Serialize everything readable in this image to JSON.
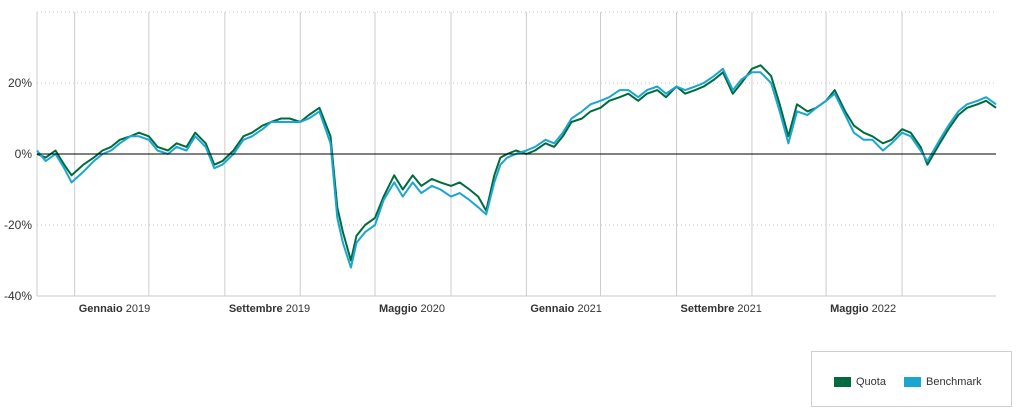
{
  "chart_data": {
    "type": "line",
    "title": "",
    "xlabel": "",
    "ylabel": "",
    "ylim": [
      -40,
      40
    ],
    "yticks": [
      {
        "value": 20,
        "label": "20%"
      },
      {
        "value": 0,
        "label": "0%"
      },
      {
        "value": -20,
        "label": "-20%"
      },
      {
        "value": -40,
        "label": "-40%"
      }
    ],
    "xlim": [
      "2018-11-01",
      "2023-01-31"
    ],
    "xticks": [
      {
        "date": "2019-01-01",
        "month": "Gennaio",
        "year": "2019"
      },
      {
        "date": "2019-09-01",
        "month": "Settembre",
        "year": "2019"
      },
      {
        "date": "2020-05-01",
        "month": "Maggio",
        "year": "2020"
      },
      {
        "date": "2021-01-01",
        "month": "Gennaio",
        "year": "2021"
      },
      {
        "date": "2021-09-01",
        "month": "Settembre",
        "year": "2021"
      },
      {
        "date": "2022-05-01",
        "month": "Maggio",
        "year": "2022"
      }
    ],
    "grid_lines_dates": [
      "2018-11-01",
      "2019-01-01",
      "2019-05-01",
      "2019-09-01",
      "2020-01-01",
      "2020-05-01",
      "2020-09-01",
      "2021-01-01",
      "2021-05-01",
      "2021-09-01",
      "2022-01-01",
      "2022-05-01",
      "2022-09-01"
    ],
    "grid": true,
    "legend": "bottom-right",
    "series": [
      {
        "name": "Quota",
        "color": "#006b3f",
        "x": [
          "2018-11-01",
          "2018-11-15",
          "2018-12-01",
          "2018-12-15",
          "2018-12-27",
          "2019-01-15",
          "2019-02-01",
          "2019-02-15",
          "2019-03-01",
          "2019-03-15",
          "2019-04-01",
          "2019-04-15",
          "2019-05-01",
          "2019-05-15",
          "2019-06-01",
          "2019-06-15",
          "2019-07-01",
          "2019-07-15",
          "2019-08-01",
          "2019-08-15",
          "2019-08-28",
          "2019-09-15",
          "2019-10-01",
          "2019-10-15",
          "2019-11-01",
          "2019-11-15",
          "2019-12-01",
          "2019-12-15",
          "2020-01-01",
          "2020-01-15",
          "2020-02-01",
          "2020-02-19",
          "2020-03-01",
          "2020-03-10",
          "2020-03-23",
          "2020-04-01",
          "2020-04-15",
          "2020-05-01",
          "2020-05-15",
          "2020-06-01",
          "2020-06-15",
          "2020-07-01",
          "2020-07-15",
          "2020-08-01",
          "2020-08-15",
          "2020-09-01",
          "2020-09-15",
          "2020-10-01",
          "2020-10-15",
          "2020-10-28",
          "2020-11-10",
          "2020-11-20",
          "2020-12-01",
          "2020-12-15",
          "2021-01-01",
          "2021-01-15",
          "2021-02-01",
          "2021-02-15",
          "2021-03-01",
          "2021-03-15",
          "2021-04-01",
          "2021-04-15",
          "2021-05-01",
          "2021-05-15",
          "2021-06-01",
          "2021-06-15",
          "2021-07-01",
          "2021-07-15",
          "2021-08-01",
          "2021-08-15",
          "2021-09-01",
          "2021-09-15",
          "2021-10-01",
          "2021-10-15",
          "2021-11-01",
          "2021-11-15",
          "2021-12-01",
          "2021-12-15",
          "2022-01-01",
          "2022-01-15",
          "2022-02-01",
          "2022-02-15",
          "2022-03-01",
          "2022-03-15",
          "2022-04-01",
          "2022-04-15",
          "2022-05-01",
          "2022-05-15",
          "2022-06-01",
          "2022-06-15",
          "2022-07-01",
          "2022-07-15",
          "2022-08-01",
          "2022-08-15",
          "2022-09-01",
          "2022-09-15",
          "2022-10-01",
          "2022-10-12",
          "2022-11-01",
          "2022-11-15",
          "2022-12-01",
          "2022-12-15",
          "2023-01-01",
          "2023-01-15",
          "2023-01-31"
        ],
        "values": [
          0,
          -1,
          1,
          -3,
          -6,
          -3,
          -1,
          1,
          2,
          4,
          5,
          6,
          5,
          2,
          1,
          3,
          2,
          6,
          3,
          -3,
          -2,
          1,
          5,
          6,
          8,
          9,
          10,
          10,
          9,
          11,
          13,
          5,
          -15,
          -22,
          -30,
          -23,
          -20,
          -18,
          -12,
          -6,
          -10,
          -6,
          -9,
          -7,
          -8,
          -9,
          -8,
          -10,
          -12,
          -16,
          -6,
          -1,
          0,
          1,
          0,
          1,
          3,
          2,
          5,
          9,
          10,
          12,
          13,
          15,
          16,
          17,
          15,
          17,
          18,
          16,
          19,
          17,
          18,
          19,
          21,
          23,
          17,
          20,
          24,
          25,
          22,
          14,
          5,
          14,
          12,
          13,
          15,
          18,
          12,
          8,
          6,
          5,
          3,
          4,
          7,
          6,
          2,
          -3,
          3,
          7,
          11,
          13,
          14,
          15,
          13
        ]
      },
      {
        "name": "Benchmark",
        "color": "#1ba6d1",
        "x": [
          "2018-11-01",
          "2018-11-15",
          "2018-12-01",
          "2018-12-15",
          "2018-12-27",
          "2019-01-15",
          "2019-02-01",
          "2019-02-15",
          "2019-03-01",
          "2019-03-15",
          "2019-04-01",
          "2019-04-15",
          "2019-05-01",
          "2019-05-15",
          "2019-06-01",
          "2019-06-15",
          "2019-07-01",
          "2019-07-15",
          "2019-08-01",
          "2019-08-15",
          "2019-08-28",
          "2019-09-15",
          "2019-10-01",
          "2019-10-15",
          "2019-11-01",
          "2019-11-15",
          "2019-12-01",
          "2019-12-15",
          "2020-01-01",
          "2020-01-15",
          "2020-02-01",
          "2020-02-19",
          "2020-03-01",
          "2020-03-10",
          "2020-03-23",
          "2020-04-01",
          "2020-04-15",
          "2020-05-01",
          "2020-05-15",
          "2020-06-01",
          "2020-06-15",
          "2020-07-01",
          "2020-07-15",
          "2020-08-01",
          "2020-08-15",
          "2020-09-01",
          "2020-09-15",
          "2020-10-01",
          "2020-10-15",
          "2020-10-28",
          "2020-11-10",
          "2020-11-20",
          "2020-12-01",
          "2020-12-15",
          "2021-01-01",
          "2021-01-15",
          "2021-02-01",
          "2021-02-15",
          "2021-03-01",
          "2021-03-15",
          "2021-04-01",
          "2021-04-15",
          "2021-05-01",
          "2021-05-15",
          "2021-06-01",
          "2021-06-15",
          "2021-07-01",
          "2021-07-15",
          "2021-08-01",
          "2021-08-15",
          "2021-09-01",
          "2021-09-15",
          "2021-10-01",
          "2021-10-15",
          "2021-11-01",
          "2021-11-15",
          "2021-12-01",
          "2021-12-15",
          "2022-01-01",
          "2022-01-15",
          "2022-02-01",
          "2022-02-15",
          "2022-03-01",
          "2022-03-15",
          "2022-04-01",
          "2022-04-15",
          "2022-05-01",
          "2022-05-15",
          "2022-06-01",
          "2022-06-15",
          "2022-07-01",
          "2022-07-15",
          "2022-08-01",
          "2022-08-15",
          "2022-09-01",
          "2022-09-15",
          "2022-10-01",
          "2022-10-12",
          "2022-11-01",
          "2022-11-15",
          "2022-12-01",
          "2022-12-15",
          "2023-01-01",
          "2023-01-15",
          "2023-01-31"
        ],
        "values": [
          1,
          -2,
          0,
          -4,
          -8,
          -5,
          -2,
          0,
          1,
          3,
          5,
          5,
          4,
          1,
          0,
          2,
          1,
          5,
          2,
          -4,
          -3,
          0,
          4,
          5,
          7,
          9,
          9,
          9,
          9,
          10,
          12,
          3,
          -18,
          -25,
          -32,
          -25,
          -22,
          -20,
          -13,
          -8,
          -12,
          -8,
          -11,
          -9,
          -10,
          -12,
          -11,
          -13,
          -15,
          -17,
          -8,
          -3,
          -1,
          0,
          1,
          2,
          4,
          3,
          6,
          10,
          12,
          14,
          15,
          16,
          18,
          18,
          16,
          18,
          19,
          17,
          19,
          18,
          19,
          20,
          22,
          24,
          18,
          21,
          23,
          23,
          20,
          12,
          3,
          12,
          11,
          13,
          15,
          17,
          11,
          6,
          4,
          4,
          1,
          3,
          6,
          5,
          1,
          -2,
          4,
          8,
          12,
          14,
          15,
          16,
          14
        ]
      }
    ]
  }
}
